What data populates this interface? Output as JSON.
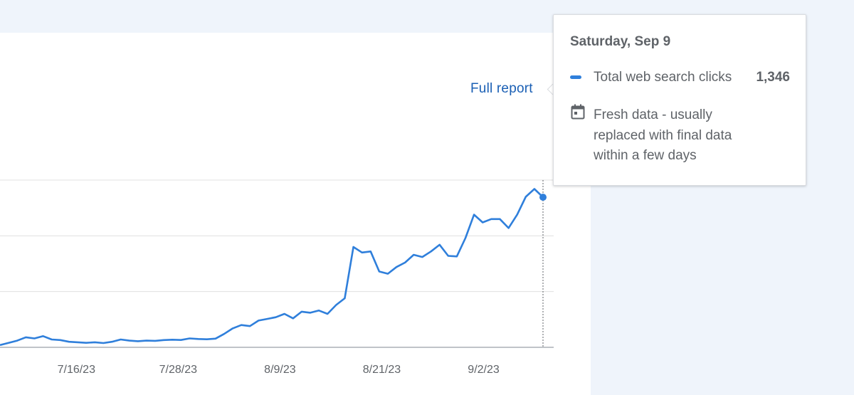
{
  "card": {
    "full_report_label": "Full report"
  },
  "tooltip": {
    "date": "Saturday, Sep 9",
    "series_label": "Total web search clicks",
    "value": "1,346",
    "note": "Fresh data - usually replaced with final data within a few days",
    "icon": "calendar-icon"
  },
  "colors": {
    "line": "#2f7fdb",
    "grid": "#e0e0e0",
    "tooltip_text": "#5f6368",
    "link": "#1a5fb4"
  },
  "chart_data": {
    "type": "line",
    "series": [
      {
        "name": "Total web search clicks",
        "values": [
          20,
          40,
          60,
          90,
          80,
          100,
          70,
          65,
          50,
          45,
          40,
          45,
          38,
          50,
          70,
          60,
          55,
          60,
          58,
          65,
          68,
          66,
          80,
          75,
          72,
          78,
          120,
          170,
          200,
          190,
          240,
          255,
          270,
          300,
          260,
          320,
          310,
          330,
          300,
          380,
          440,
          900,
          850,
          860,
          680,
          660,
          720,
          760,
          830,
          810,
          860,
          920,
          820,
          815,
          980,
          1190,
          1120,
          1150,
          1150,
          1070,
          1190,
          1350,
          1420,
          1346
        ]
      }
    ],
    "x_start": "7/7/23",
    "x_end": "9/9/23",
    "x_tick_labels": [
      "7/16/23",
      "7/28/23",
      "8/9/23",
      "8/21/23",
      "9/2/23"
    ],
    "y_tick_labels": [],
    "ylim": [
      0,
      1500
    ],
    "grid": true,
    "highlight": {
      "date": "9/9/23",
      "value": 1346
    }
  }
}
